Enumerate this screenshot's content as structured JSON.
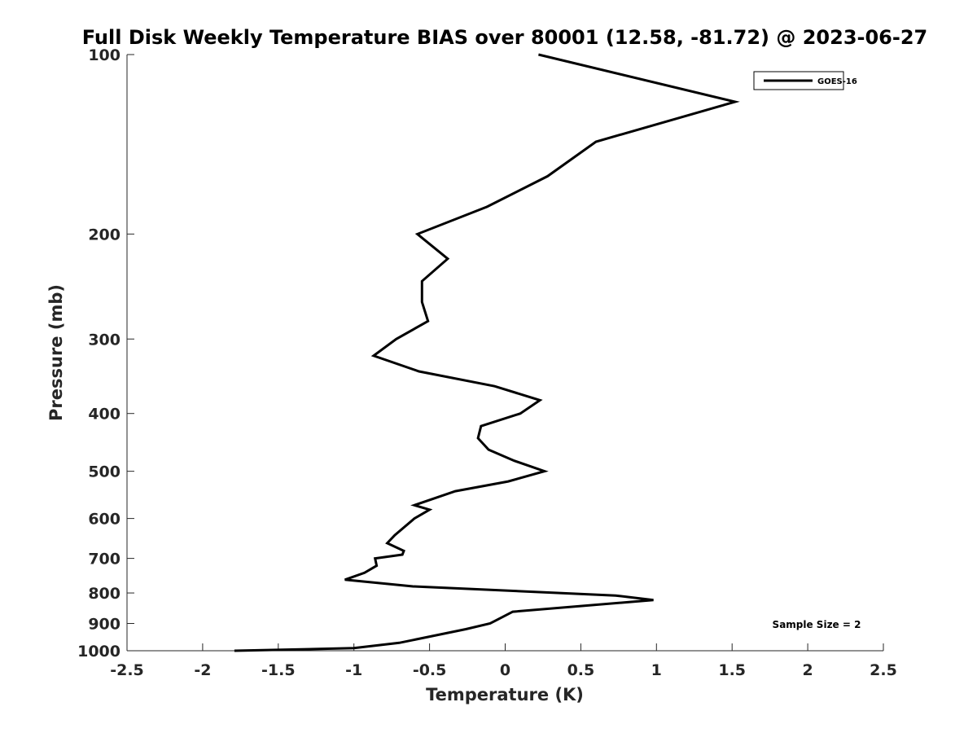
{
  "chart_data": {
    "type": "line",
    "title": "Full Disk Weekly Temperature BIAS over 80001 (12.58, -81.72) @ 2023-06-27",
    "xlabel": "Temperature (K)",
    "ylabel": "Pressure (mb)",
    "xlim": [
      -2.5,
      2.5
    ],
    "ylim": [
      100,
      1000
    ],
    "yscale": "log",
    "y_reversed": true,
    "xticks": [
      "-2.5",
      "-2",
      "-1.5",
      "-1",
      "-0.5",
      "0",
      "0.5",
      "1",
      "1.5",
      "2",
      "2.5"
    ],
    "yticks": [
      "100",
      "200",
      "300",
      "400",
      "500",
      "600",
      "700",
      "800",
      "900",
      "1000"
    ],
    "grid": false,
    "legend_position": "top-right",
    "annotation": "Sample Size = 2",
    "series": [
      {
        "name": "GOES-16",
        "color": "#000000",
        "points": [
          [
            0.22,
            100
          ],
          [
            1.52,
            120
          ],
          [
            0.6,
            140
          ],
          [
            0.28,
            160
          ],
          [
            -0.12,
            180
          ],
          [
            -0.58,
            200
          ],
          [
            -0.38,
            220
          ],
          [
            -0.55,
            240
          ],
          [
            -0.55,
            260
          ],
          [
            -0.51,
            280
          ],
          [
            -0.72,
            300
          ],
          [
            -0.87,
            320
          ],
          [
            -0.57,
            340
          ],
          [
            -0.07,
            360
          ],
          [
            0.23,
            380
          ],
          [
            0.1,
            400
          ],
          [
            -0.16,
            420
          ],
          [
            -0.18,
            440
          ],
          [
            -0.11,
            460
          ],
          [
            0.06,
            480
          ],
          [
            0.26,
            500
          ],
          [
            0.02,
            520
          ],
          [
            -0.33,
            540
          ],
          [
            -0.6,
            570
          ],
          [
            -0.5,
            580
          ],
          [
            -0.6,
            600
          ],
          [
            -0.73,
            640
          ],
          [
            -0.78,
            660
          ],
          [
            -0.67,
            680
          ],
          [
            -0.68,
            690
          ],
          [
            -0.86,
            700
          ],
          [
            -0.85,
            720
          ],
          [
            -0.93,
            740
          ],
          [
            -1.06,
            760
          ],
          [
            -0.61,
            780
          ],
          [
            0.73,
            808
          ],
          [
            0.98,
            822
          ],
          [
            0.05,
            860
          ],
          [
            -0.1,
            900
          ],
          [
            -0.26,
            920
          ],
          [
            -0.7,
            970
          ],
          [
            -1.0,
            990
          ],
          [
            -1.79,
            1000
          ]
        ]
      }
    ]
  }
}
